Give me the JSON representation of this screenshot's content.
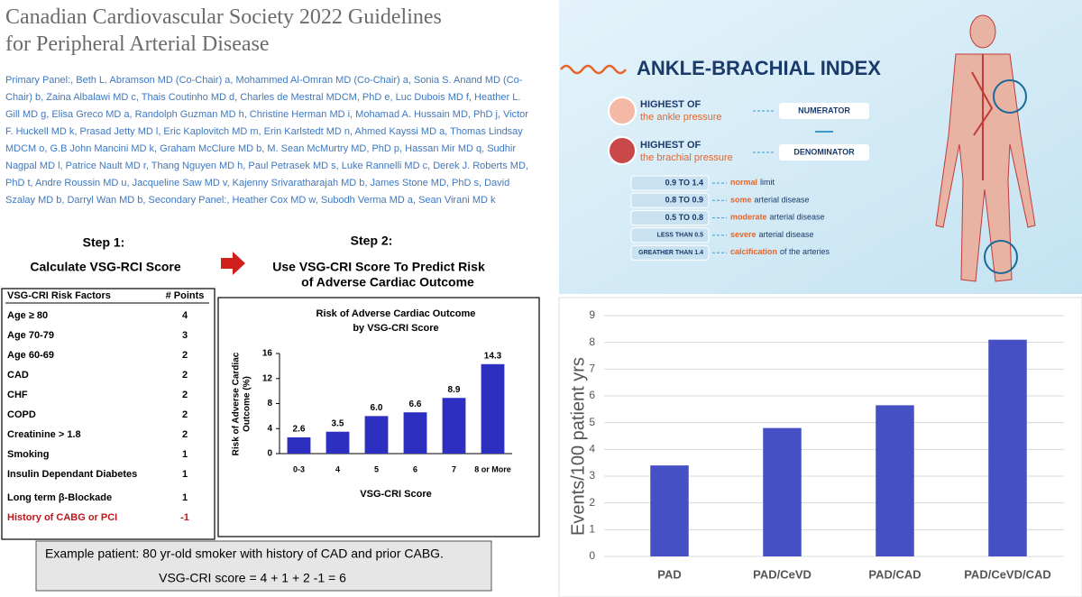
{
  "header": {
    "title": [
      "Canadian Cardiovascular Society 2022 Guidelines",
      "for Peripheral Arterial Disease"
    ],
    "authors": "Primary Panel:, Beth L. Abramson MD (Co-Chair) a, Mohammed Al-Omran MD (Co-Chair) a, Sonia S. Anand MD (Co-Chair) b, Zaina Albalawi MD c, Thais Coutinho MD d, Charles de Mestral MDCM, PhD e, Luc Dubois MD f, Heather L. Gill MD g, Elisa Greco MD a, Randolph Guzman MD h, Christine Herman MD i, Mohamad A. Hussain MD, PhD j, Victor F. Huckell MD k, Prasad Jetty MD l, Eric Kaplovitch MD m, Erin Karlstedt MD n, Ahmed Kayssi MD a, Thomas Lindsay MDCM o, G.B John Mancini MD k, Graham McClure MD b, M. Sean McMurtry MD, PhD p, Hassan Mir MD q, Sudhir Nagpal MD l, Patrice Nault MD r, Thang Nguyen MD h, Paul Petrasek MD s, Luke Rannelli MD c, Derek J. Roberts MD, PhD t, Andre Roussin MD u, Jacqueline Saw MD v, Kajenny Srivaratharajah MD b, James Stone MD, PhD s, David Szalay MD b, Darryl Wan MD b, Secondary Panel:, Heather Cox MD w, Subodh Verma MD a, Sean Virani MD k"
  },
  "steps": [
    {
      "label": "Step 1:",
      "text": [
        "Calculate VSG-RCI Score"
      ]
    },
    {
      "label": "Step 2:",
      "text": [
        "Use VSG-CRI Score To Predict Risk",
        "of Adverse Cardiac Outcome"
      ]
    }
  ],
  "table": {
    "header": [
      "VSG-CRI Risk Factors",
      "# Points"
    ],
    "rows": [
      [
        "Age ≥ 80",
        4
      ],
      [
        "Age 70-79",
        3
      ],
      [
        "Age 60-69",
        2
      ],
      [
        "CAD",
        2
      ],
      [
        "CHF",
        2
      ],
      [
        "COPD",
        2
      ],
      [
        "Creatinine > 1.8",
        2
      ],
      [
        "Smoking",
        1
      ],
      [
        "Insulin Dependant Diabetes",
        1
      ],
      [
        "Long term β-Blockade",
        1
      ],
      [
        "History of CABG or PCI",
        -1
      ]
    ]
  },
  "example": {
    "lines": [
      "Example patient: 80 yr-old smoker with history of CAD and prior CABG.",
      "VSG-CRI score = 4 + 1 + 2 -1 = 6"
    ]
  },
  "infographic": {
    "title": "ANKLE-BRACHIAL INDEX",
    "terms": [
      {
        "head": "HIGHEST OF",
        "sub": "the ankle pressure",
        "role": "NUMERATOR"
      },
      {
        "head": "HIGHEST OF",
        "sub": "the brachial pressure",
        "role": "DENOMINATOR"
      }
    ],
    "ranges": [
      {
        "range": "0.9 TO 1.4",
        "emphasis": "normal",
        "rest": "limit"
      },
      {
        "range": "0.8 TO 0.9",
        "emphasis": "some",
        "rest": "arterial disease"
      },
      {
        "range": "0.5 TO 0.8",
        "emphasis": "moderate",
        "rest": "arterial disease"
      },
      {
        "range": "LESS THAN 0.5",
        "emphasis": "severe",
        "rest": "arterial disease"
      },
      {
        "range": "GREATHER THAN 1.4",
        "emphasis": "calcification",
        "rest": "of the arteries"
      }
    ]
  },
  "chart_data": [
    {
      "type": "bar",
      "title": [
        "Risk of Adverse Cardiac Outcome",
        "by VSG-CRI Score"
      ],
      "ylabel": [
        "Risk of Adverse Cardiac",
        "Outcome (%)"
      ],
      "xlabel": "VSG-CRI Score",
      "categories": [
        "0-3",
        "4",
        "5",
        "6",
        "7",
        "8 or More"
      ],
      "values": [
        2.6,
        3.5,
        6.0,
        6.6,
        8.9,
        14.3
      ],
      "value_labels": [
        "2.6",
        "3.5",
        "6.0",
        "6.6",
        "8.9",
        "14.3"
      ],
      "color": "#2d2fc0",
      "ylim": [
        0,
        16
      ],
      "yticks": [
        0,
        4,
        8,
        12,
        16
      ],
      "grid": false
    },
    {
      "type": "bar",
      "ylabel": "Events/100 patient yrs",
      "categories": [
        "PAD",
        "PAD/CeVD",
        "PAD/CAD",
        "PAD/CeVD/CAD"
      ],
      "values": [
        3.4,
        4.8,
        5.65,
        8.1
      ],
      "color": "#4450c4",
      "ylim": [
        0,
        9
      ],
      "yticks": [
        0,
        1,
        2,
        3,
        4,
        5,
        6,
        7,
        8,
        9
      ],
      "grid": true
    }
  ]
}
